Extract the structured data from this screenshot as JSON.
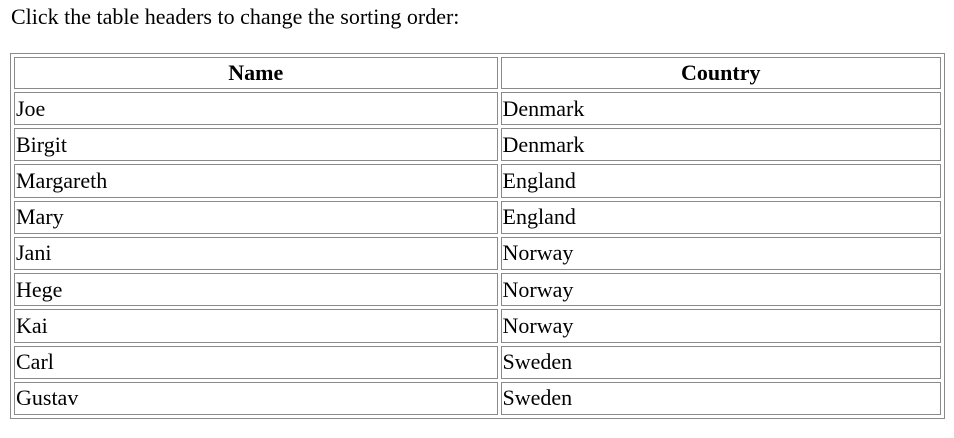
{
  "instructions": "Click the table headers to change the sorting order:",
  "table": {
    "headers": [
      "Name",
      "Country"
    ],
    "rows": [
      [
        "Joe",
        "Denmark"
      ],
      [
        "Birgit",
        "Denmark"
      ],
      [
        "Margareth",
        "England"
      ],
      [
        "Mary",
        "England"
      ],
      [
        "Jani",
        "Norway"
      ],
      [
        "Hege",
        "Norway"
      ],
      [
        "Kai",
        "Norway"
      ],
      [
        "Carl",
        "Sweden"
      ],
      [
        "Gustav",
        "Sweden"
      ]
    ]
  }
}
